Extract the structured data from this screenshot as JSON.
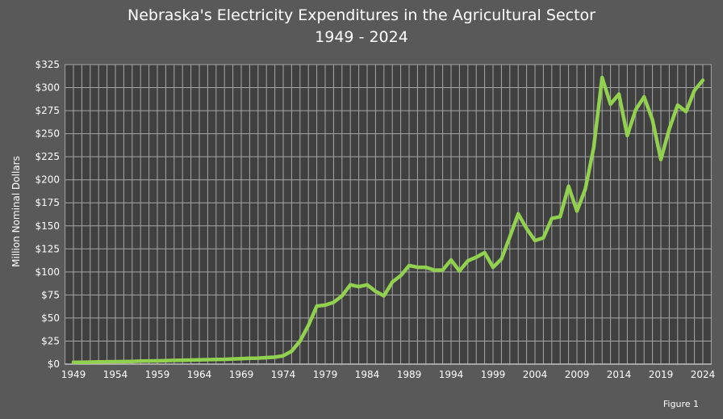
{
  "chart_data": {
    "type": "line",
    "title": "Nebraska's Electricity Expenditures in the Agricultural Sector",
    "subtitle": "1949 - 2024",
    "ylabel": "Million Nominal Dollars",
    "xlabel": "",
    "ylim": [
      0,
      325
    ],
    "xlim": [
      1949,
      2024
    ],
    "y_ticks": [
      "$0",
      "$25",
      "$50",
      "$75",
      "$100",
      "$125",
      "$150",
      "$175",
      "$200",
      "$225",
      "$250",
      "$275",
      "$300",
      "$325"
    ],
    "x_ticks": [
      "1949",
      "1954",
      "1959",
      "1964",
      "1969",
      "1974",
      "1979",
      "1984",
      "1989",
      "1994",
      "1999",
      "2004",
      "2009",
      "2014",
      "2019",
      "2024"
    ],
    "grid": true,
    "legend": "none",
    "line_color": "#92D050",
    "x": [
      1949,
      1950,
      1951,
      1952,
      1953,
      1954,
      1955,
      1956,
      1957,
      1958,
      1959,
      1960,
      1961,
      1962,
      1963,
      1964,
      1965,
      1966,
      1967,
      1968,
      1969,
      1970,
      1971,
      1972,
      1973,
      1974,
      1975,
      1976,
      1977,
      1978,
      1979,
      1980,
      1981,
      1982,
      1983,
      1984,
      1985,
      1986,
      1987,
      1988,
      1989,
      1990,
      1991,
      1992,
      1993,
      1994,
      1995,
      1996,
      1997,
      1998,
      1999,
      2000,
      2001,
      2002,
      2003,
      2004,
      2005,
      2006,
      2007,
      2008,
      2009,
      2010,
      2011,
      2012,
      2013,
      2014,
      2015,
      2016,
      2017,
      2018,
      2019,
      2020,
      2021,
      2022,
      2023,
      2024
    ],
    "values": [
      2,
      2,
      2.2,
      2.4,
      2.5,
      2.6,
      2.7,
      2.9,
      3.2,
      3.4,
      3.5,
      3.8,
      4,
      4.2,
      4.4,
      4.6,
      4.8,
      5,
      5.2,
      5.6,
      6,
      6.3,
      6.5,
      7,
      7.5,
      9,
      14,
      25,
      42,
      63,
      64,
      67,
      74,
      86,
      84,
      86,
      79,
      74,
      89,
      96,
      107,
      105,
      105,
      102,
      102,
      113,
      101,
      112,
      116,
      121,
      105,
      114,
      138,
      163,
      147,
      134,
      137,
      158,
      160,
      193,
      166,
      190,
      235,
      311,
      282,
      293,
      248,
      276,
      290,
      265,
      222,
      255,
      281,
      274,
      297,
      308
    ]
  },
  "footer": {
    "figure_label": "Figure 1"
  }
}
